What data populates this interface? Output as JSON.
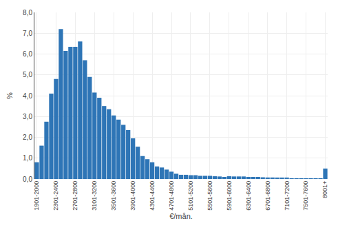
{
  "chart_data": {
    "type": "bar",
    "categories": [
      "1901-2000",
      null,
      null,
      null,
      "2301-2400",
      null,
      null,
      null,
      "2701-2800",
      null,
      null,
      null,
      "3101-3200",
      null,
      null,
      null,
      "3501-3600",
      null,
      null,
      null,
      "3901-4000",
      null,
      null,
      null,
      "4301-4400",
      null,
      null,
      null,
      "4701-4800",
      null,
      null,
      null,
      "5101-5200",
      null,
      null,
      null,
      "5501-5600",
      null,
      null,
      null,
      "5901-6000",
      null,
      null,
      null,
      "6301-6400",
      null,
      null,
      null,
      "6701-6800",
      null,
      null,
      null,
      "7101-7200",
      null,
      null,
      null,
      "7501-7600",
      null,
      null,
      null,
      "8001+"
    ],
    "values": [
      0.8,
      1.6,
      2.75,
      4.1,
      4.8,
      7.2,
      6.15,
      6.35,
      6.35,
      6.6,
      5.7,
      4.9,
      4.15,
      3.9,
      3.5,
      3.35,
      3.05,
      2.85,
      2.6,
      2.35,
      1.95,
      1.55,
      1.1,
      0.95,
      0.8,
      0.6,
      0.55,
      0.45,
      0.35,
      0.25,
      0.2,
      0.2,
      0.18,
      0.18,
      0.15,
      0.15,
      0.15,
      0.13,
      0.12,
      0.1,
      0.13,
      0.12,
      0.12,
      0.12,
      0.1,
      0.1,
      0.1,
      0.08,
      0.07,
      0.07,
      0.05,
      0.05,
      0.04,
      0.03,
      0.03,
      0.02,
      0.02,
      0.01,
      0.01,
      0.01,
      0.5
    ],
    "color": "#2e75b6",
    "xlabel": "€/mån.",
    "ylabel": "%",
    "ylim": [
      0,
      8.0
    ],
    "yticks": [
      {
        "value": 0.0,
        "label": "0,0"
      },
      {
        "value": 1.0,
        "label": "1,0"
      },
      {
        "value": 2.0,
        "label": "2,0"
      },
      {
        "value": 3.0,
        "label": "3,0"
      },
      {
        "value": 4.0,
        "label": "4,0"
      },
      {
        "value": 5.0,
        "label": "5,0"
      },
      {
        "value": 6.0,
        "label": "6,0"
      },
      {
        "value": 7.0,
        "label": "7,0"
      },
      {
        "value": 8.0,
        "label": "8,0"
      }
    ],
    "grid": true
  }
}
